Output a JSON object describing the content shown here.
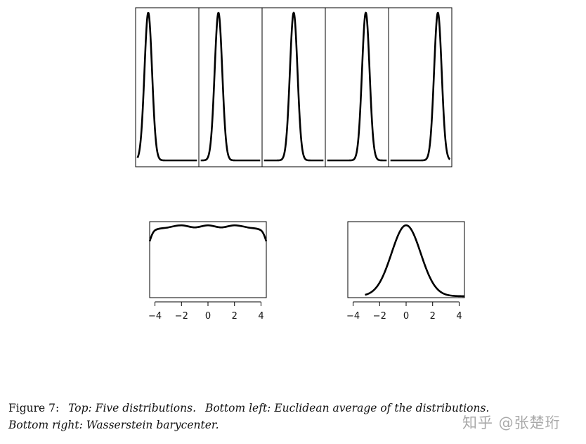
{
  "chart_data": [
    {
      "type": "line",
      "panel": "top",
      "panels": 5,
      "series": [
        {
          "mode": 0.2
        },
        {
          "mode": 0.31
        },
        {
          "mode": 0.5
        },
        {
          "mode": 0.64
        },
        {
          "mode": 0.78
        }
      ],
      "axes_ticks": false
    },
    {
      "type": "line",
      "panel": "bottom-left",
      "xlim": [
        -4.4,
        4.4
      ],
      "xticks": [
        "−4",
        "−2",
        "0",
        "2",
        "4"
      ],
      "xtick_values": [
        -4,
        -2,
        0,
        2,
        4
      ],
      "series": [
        {
          "x": [
            -4.4,
            -4.0,
            -3.0,
            -2.0,
            -1.0,
            0,
            1.0,
            2.0,
            3.0,
            4.0,
            4.4
          ],
          "y": [
            0.78,
            0.93,
            0.97,
            1.0,
            0.97,
            1.0,
            0.97,
            1.0,
            0.97,
            0.93,
            0.78
          ]
        }
      ],
      "ylim": [
        0,
        1.05
      ]
    },
    {
      "type": "line",
      "panel": "bottom-right",
      "xlim": [
        -4.4,
        4.4
      ],
      "xticks": [
        "−4",
        "−2",
        "0",
        "2",
        "4"
      ],
      "xtick_values": [
        -4,
        -2,
        0,
        2,
        4
      ],
      "series": [
        {
          "mean": 0,
          "sd": 1.1,
          "xrange": [
            -3.1,
            4.4
          ]
        }
      ],
      "ylim": [
        0,
        1.05
      ]
    }
  ],
  "caption": {
    "label": "Figure 7:",
    "top_label": "Top:",
    "top_text": "Five distributions.",
    "bl_label": "Bottom left:",
    "bl_text": "Euclidean average of the distributions.",
    "br_label": "Bottom right:",
    "br_text": "Wasserstein barycenter."
  },
  "watermark": "知乎 @张楚珩"
}
